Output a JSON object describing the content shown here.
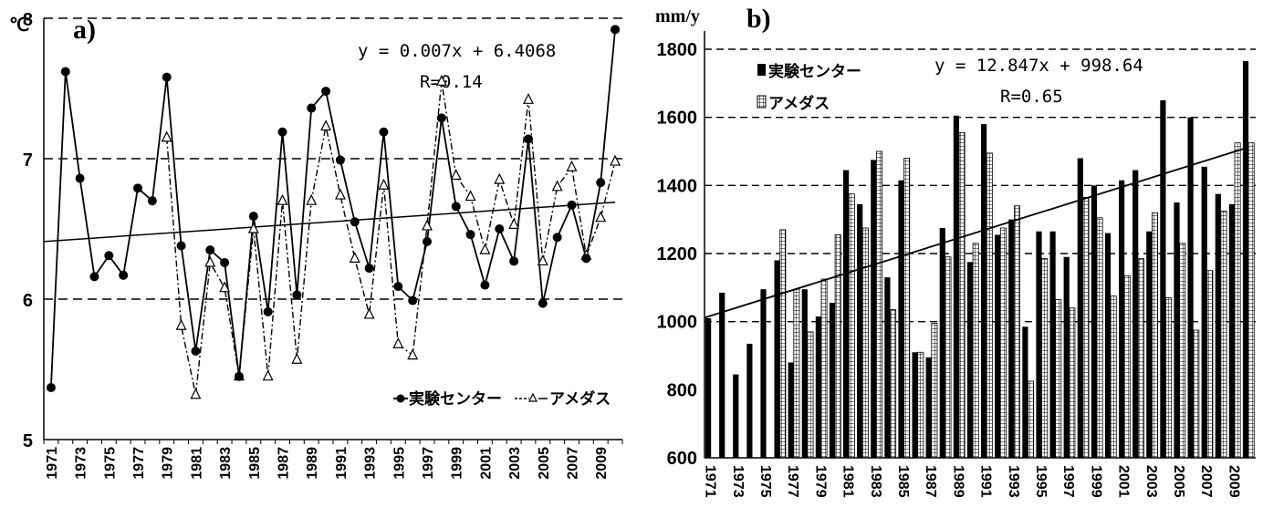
{
  "chart_data": [
    {
      "panel": "a)",
      "type": "line",
      "unit": "℃",
      "ylim": [
        5,
        8
      ],
      "yticks": [
        "5",
        "6",
        "7",
        "8"
      ],
      "x": [
        1971,
        1972,
        1973,
        1974,
        1975,
        1976,
        1977,
        1978,
        1979,
        1980,
        1981,
        1982,
        1983,
        1984,
        1985,
        1986,
        1987,
        1988,
        1989,
        1990,
        1991,
        1992,
        1993,
        1994,
        1995,
        1996,
        1997,
        1998,
        1999,
        2000,
        2001,
        2002,
        2003,
        2004,
        2005,
        2006,
        2007,
        2008,
        2009,
        2010
      ],
      "xtick_labels": [
        "1971",
        "1973",
        "1975",
        "1977",
        "1979",
        "1981",
        "1983",
        "1985",
        "1987",
        "1989",
        "1991",
        "1993",
        "1995",
        "1997",
        "1999",
        "2001",
        "2003",
        "2005",
        "2007",
        "2009"
      ],
      "series": [
        {
          "name": "実験センター",
          "marker": "circle",
          "values": [
            5.37,
            7.62,
            6.86,
            6.16,
            6.31,
            6.17,
            6.79,
            6.7,
            7.58,
            6.38,
            5.63,
            6.35,
            6.26,
            5.45,
            6.59,
            5.91,
            7.19,
            6.03,
            7.36,
            7.48,
            6.99,
            6.55,
            6.22,
            7.19,
            6.09,
            5.99,
            6.41,
            7.29,
            6.66,
            6.46,
            6.1,
            6.5,
            6.27,
            7.14,
            5.97,
            6.44,
            6.67,
            6.29,
            6.83,
            7.92
          ]
        },
        {
          "name": "アメダス",
          "marker": "triangle",
          "values": [
            null,
            null,
            null,
            null,
            null,
            null,
            null,
            null,
            7.15,
            5.81,
            5.32,
            6.26,
            6.08,
            5.45,
            6.5,
            5.45,
            6.7,
            5.57,
            6.7,
            7.23,
            6.74,
            6.29,
            5.89,
            6.81,
            5.68,
            5.6,
            6.52,
            7.55,
            6.88,
            6.73,
            6.35,
            6.85,
            6.53,
            7.42,
            6.27,
            6.8,
            6.94,
            6.31,
            6.58,
            6.98
          ]
        }
      ],
      "trendline": {
        "equation": "y = 0.007x + 6.4068",
        "r": "R=0.14",
        "start": 6.41,
        "end": 6.69
      },
      "grid": "dashed horizontal at 6, 7, 8",
      "legend": {
        "placement": "bottom-right",
        "text": "●実験センター -△-アメダス"
      }
    },
    {
      "panel": "b)",
      "type": "bar",
      "unit": "mm/y",
      "ylim": [
        600,
        1800
      ],
      "yticks": [
        "600",
        "800",
        "1000",
        "1200",
        "1400",
        "1600",
        "1800"
      ],
      "x": [
        1971,
        1972,
        1973,
        1974,
        1975,
        1976,
        1977,
        1978,
        1979,
        1980,
        1981,
        1982,
        1983,
        1984,
        1985,
        1986,
        1987,
        1988,
        1989,
        1990,
        1991,
        1992,
        1993,
        1994,
        1995,
        1996,
        1997,
        1998,
        1999,
        2000,
        2001,
        2002,
        2003,
        2004,
        2005,
        2006,
        2007,
        2008,
        2009,
        2010
      ],
      "xtick_labels": [
        "1971",
        "1973",
        "1975",
        "1977",
        "1979",
        "1981",
        "1983",
        "1985",
        "1987",
        "1989",
        "1991",
        "1993",
        "1995",
        "1997",
        "1999",
        "2001",
        "2003",
        "2005",
        "2007",
        "2009"
      ],
      "series": [
        {
          "name": "実験センター",
          "pattern": "solid",
          "values": [
            1010,
            1085,
            845,
            935,
            1095,
            1180,
            880,
            1095,
            1015,
            1055,
            1445,
            1345,
            1475,
            1130,
            1415,
            910,
            895,
            1275,
            1605,
            1175,
            1580,
            1255,
            1300,
            985,
            1265,
            1265,
            1190,
            1480,
            1400,
            1260,
            1415,
            1445,
            1265,
            1650,
            1350,
            1600,
            1455,
            1375,
            1345,
            1765
          ]
        },
        {
          "name": "アメダス",
          "pattern": "hatched",
          "values": [
            null,
            null,
            null,
            null,
            null,
            1270,
            1095,
            970,
            1125,
            1255,
            1375,
            1275,
            1500,
            1035,
            1480,
            910,
            995,
            1190,
            1555,
            1230,
            1495,
            1275,
            1340,
            825,
            1185,
            1065,
            1040,
            1365,
            1305,
            1075,
            1135,
            1185,
            1320,
            1070,
            1230,
            975,
            1150,
            1325,
            1525,
            1525
          ]
        }
      ],
      "trendline": {
        "equation": "y = 12.847x + 998.64",
        "r": "R=0.65",
        "start": 1011.5,
        "end": 1512.5
      },
      "grid": "dashed horizontal at 1000, 1200, 1400, 1600, 1800",
      "legend": {
        "placement": "top-left",
        "items": [
          "■実験センター",
          "▤アメダス"
        ]
      }
    }
  ]
}
